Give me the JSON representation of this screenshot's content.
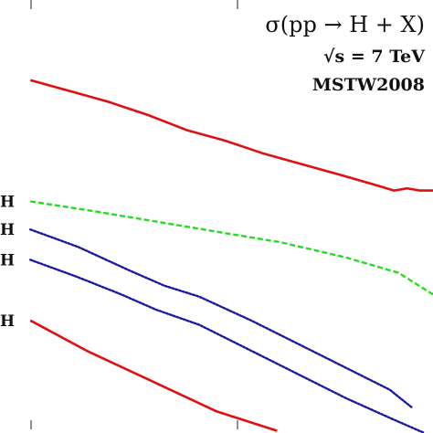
{
  "chart_data": {
    "type": "line",
    "annotations": {
      "process": "σ(pp → H + X)",
      "energy_sqrt": "√s",
      "energy_value": " = 7 TeV",
      "pdf_set": "MSTW2008"
    },
    "series": [
      {
        "label": "H",
        "color": "#e01010",
        "dash": "solid",
        "x": [
          0.07,
          0.16,
          0.25,
          0.34,
          0.43,
          0.52,
          0.61,
          0.7,
          0.79,
          0.86,
          0.91,
          0.94,
          0.97,
          1.0
        ],
        "y": [
          0.815,
          0.79,
          0.765,
          0.735,
          0.7,
          0.675,
          0.645,
          0.62,
          0.595,
          0.575,
          0.56,
          0.565,
          0.56,
          0.56
        ]
      },
      {
        "label": "H",
        "color": "#22dd22",
        "dash": "dash",
        "x": [
          0.07,
          0.2,
          0.35,
          0.5,
          0.65,
          0.8,
          0.92,
          1.0
        ],
        "y": [
          0.535,
          0.515,
          0.49,
          0.465,
          0.44,
          0.405,
          0.37,
          0.32
        ]
      },
      {
        "label": "H",
        "color": "#1a1aa0",
        "dash": "dot",
        "x": [
          0.07,
          0.18,
          0.3,
          0.38,
          0.46,
          0.58,
          0.7,
          0.8,
          0.9,
          0.95
        ],
        "y": [
          0.47,
          0.43,
          0.375,
          0.34,
          0.315,
          0.26,
          0.2,
          0.15,
          0.1,
          0.06
        ]
      },
      {
        "label": "H",
        "color": "#1a1aa0",
        "dash": "dot",
        "x": [
          0.07,
          0.18,
          0.28,
          0.36,
          0.46,
          0.58,
          0.7,
          0.8,
          0.9,
          0.98
        ],
        "y": [
          0.4,
          0.36,
          0.32,
          0.285,
          0.25,
          0.19,
          0.13,
          0.08,
          0.035,
          0.0
        ]
      },
      {
        "label": "H",
        "color": "#e01010",
        "dash": "solid",
        "x": [
          0.07,
          0.2,
          0.35,
          0.5,
          0.64
        ],
        "y": [
          0.26,
          0.19,
          0.12,
          0.05,
          0.005
        ]
      }
    ],
    "xlim": [
      0.0,
      1.0
    ],
    "ylim": [
      0.0,
      1.0
    ],
    "grid": false
  }
}
